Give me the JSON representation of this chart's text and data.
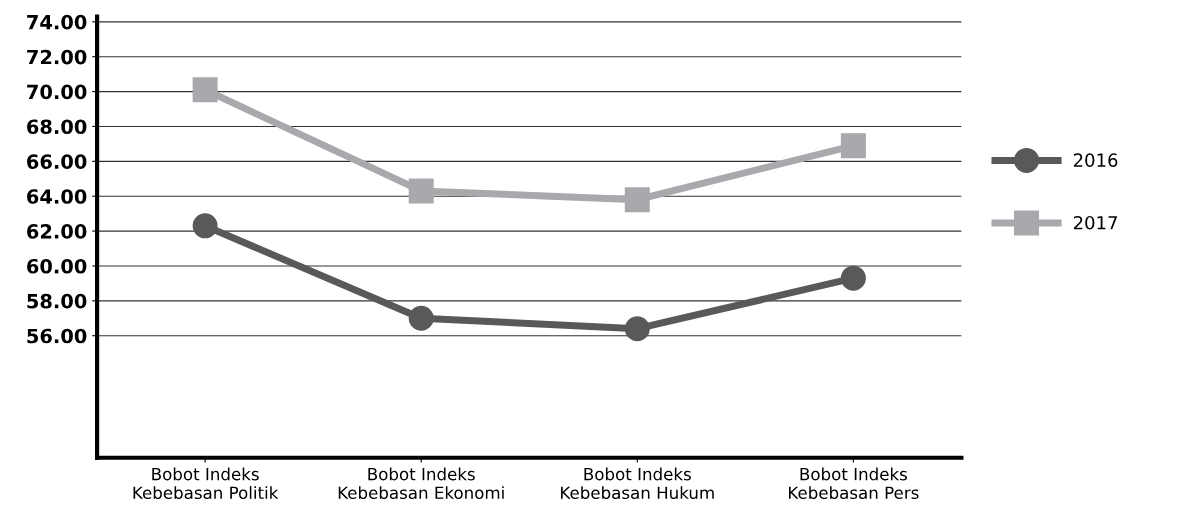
{
  "chart_data": {
    "type": "line",
    "categories": [
      "Bobot Indeks\nKebebasan Politik",
      "Bobot Indeks\nKebebasan Ekonomi",
      "Bobot Indeks\nKebebasan Hukum",
      "Bobot Indeks\nKebebasan Pers"
    ],
    "series": [
      {
        "name": "2016",
        "color": "#58595b",
        "marker": "circle",
        "values": [
          62.3,
          57.0,
          56.4,
          59.3
        ]
      },
      {
        "name": "2017",
        "color": "#a7a9ac",
        "marker": "square",
        "values": [
          70.1,
          64.3,
          63.8,
          66.9
        ]
      }
    ],
    "ylim": [
      49,
      74.3
    ],
    "yticks": [
      {
        "value": 74,
        "label": "74.00"
      },
      {
        "value": 72,
        "label": "72.00"
      },
      {
        "value": 70,
        "label": "70.00"
      },
      {
        "value": 68,
        "label": "68.00"
      },
      {
        "value": 66,
        "label": "66.00"
      },
      {
        "value": 64,
        "label": "64.00"
      },
      {
        "value": 62,
        "label": "62.00"
      },
      {
        "value": 60,
        "label": "60.00"
      },
      {
        "value": 58,
        "label": "58.00"
      },
      {
        "value": 56,
        "label": "56.00"
      }
    ],
    "grid": "y",
    "legend": "right",
    "line_style": "solid"
  }
}
